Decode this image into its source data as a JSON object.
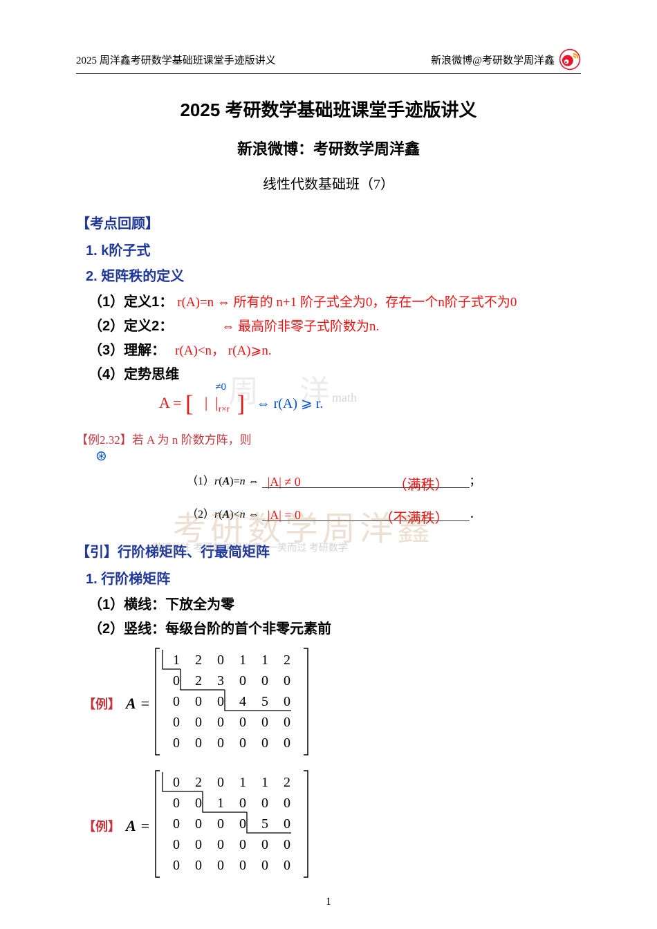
{
  "header_left": "2025 周洋鑫考研数学基础班课堂手迹版讲义",
  "header_right": "新浪微博@考研数学周洋鑫",
  "title1": "2025 考研数学基础班课堂手迹版讲义",
  "title2": "新浪微博：考研数学周洋鑫",
  "subtitle": "线性代数基础班（7）",
  "section1": "【考点回顾】",
  "item1": "1. k阶子式",
  "item2": "2. 矩阵秩的定义",
  "sub1_label": "（1）定义1：",
  "sub1_hand": "r(A)=n ⇔ 所有的 n+1 阶子式全为0，存在一个n阶子式不为0",
  "sub2_label": "（2）定义2：",
  "sub2_hand": "⇔ 最高阶非零子式阶数为n.",
  "sub3_label": "（3）理解：",
  "sub3_hand": "r(A)<n，  r(A)⩾n.",
  "sub4_label": "（4）定势思维",
  "formula_hand": "A = [  |  |≠0 r×r  ]   ⇔ r(A) ⩾ r.",
  "example232": "【例2.32】若 A 为 n 阶数方阵，则",
  "ex1_prefix": "（1） r(A)=n ⇔ ",
  "ex1_fill": "|A| ≠ 0",
  "ex1_note": "（满秩）",
  "ex2_prefix": "（2） r(A)<n ⇔ ",
  "ex2_fill": "|A| = 0",
  "ex2_note": "（不满秩）",
  "section2": "【引】行阶梯矩阵、行最简矩阵",
  "item3": "1. 行阶梯矩阵",
  "sub5": "（1）横线：下放全为零",
  "sub6": "（2）竖线：每级台阶的首个非零元素前",
  "matrix1_label": "【例】",
  "matrix1": {
    "rows": [
      [
        1,
        2,
        0,
        1,
        1,
        2
      ],
      [
        0,
        2,
        3,
        0,
        0,
        0
      ],
      [
        0,
        0,
        0,
        4,
        5,
        0
      ],
      [
        0,
        0,
        0,
        0,
        0,
        0
      ],
      [
        0,
        0,
        0,
        0,
        0,
        0
      ]
    ],
    "steps": [
      [
        0,
        1
      ],
      [
        1,
        3
      ],
      [
        2,
        6
      ]
    ]
  },
  "matrix2_label": "【例】",
  "matrix2": {
    "rows": [
      [
        0,
        2,
        0,
        1,
        1,
        2
      ],
      [
        0,
        0,
        1,
        0,
        0,
        0
      ],
      [
        0,
        0,
        0,
        0,
        5,
        0
      ],
      [
        0,
        0,
        0,
        0,
        0,
        0
      ],
      [
        0,
        0,
        0,
        0,
        0,
        0
      ]
    ],
    "steps": [
      [
        0,
        2
      ],
      [
        1,
        4
      ],
      [
        2,
        6
      ]
    ]
  },
  "watermark1": "周 洋",
  "watermark_math": "math",
  "watermark2": "考研数学周洋鑫",
  "watermark3": "微博关注 考研数学周洋鑫  |  一笑而过 考研数学",
  "pagenum": "1",
  "colors": {
    "blue": "#1e3799",
    "red": "#e11",
    "darkred": "#c3363e"
  }
}
